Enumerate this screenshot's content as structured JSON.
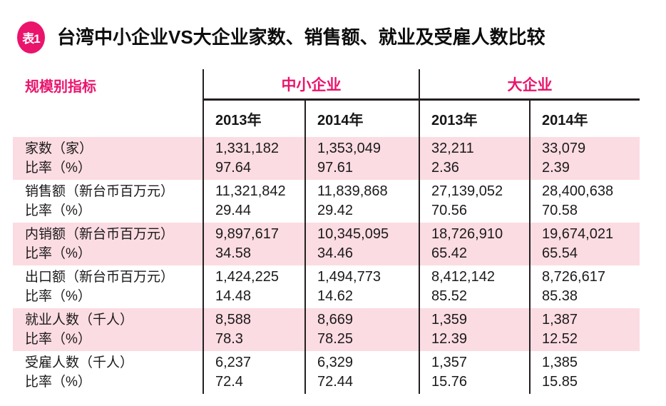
{
  "colors": {
    "accent_magenta": "#EA146C",
    "row_highlight_pink": "#FBDCE2",
    "rule_black": "#231F20",
    "text_black": "#1C1A1B"
  },
  "title": {
    "badge": "表1",
    "text": "台湾中小企业VS大企业家数、销售额、就业及受雇人数比较"
  },
  "table": {
    "corner_label": "规模别指标",
    "groups": [
      {
        "label": "中小企业"
      },
      {
        "label": "大企业"
      }
    ],
    "year_labels": [
      "2013年",
      "2014年",
      "2013年",
      "2014年"
    ],
    "rows": [
      {
        "label": "家数（家）",
        "sublabel": "比率（%）",
        "highlight": true,
        "values": [
          "1,331,182",
          "1,353,049",
          "32,211",
          "33,079"
        ],
        "ratios": [
          "97.64",
          "97.61",
          "2.36",
          "2.39"
        ]
      },
      {
        "label": "销售额（新台币百万元）",
        "sublabel": "比率（%）",
        "highlight": false,
        "values": [
          "11,321,842",
          "11,839,868",
          "27,139,052",
          "28,400,638"
        ],
        "ratios": [
          "29.44",
          "29.42",
          "70.56",
          "70.58"
        ]
      },
      {
        "label": "内销额（新台币百万元）",
        "sublabel": "比率（%）",
        "highlight": true,
        "values": [
          "9,897,617",
          "10,345,095",
          "18,726,910",
          "19,674,021"
        ],
        "ratios": [
          "34.58",
          "34.46",
          "65.42",
          "65.54"
        ]
      },
      {
        "label": "出口额（新台币百万元）",
        "sublabel": "比率（%）",
        "highlight": false,
        "values": [
          "1,424,225",
          "1,494,773",
          "8,412,142",
          "8,726,617"
        ],
        "ratios": [
          "14.48",
          "14.62",
          "85.52",
          "85.38"
        ]
      },
      {
        "label": "就业人数（千人）",
        "sublabel": "比率（%）",
        "highlight": true,
        "values": [
          "8,588",
          "8,669",
          "1,359",
          "1,387"
        ],
        "ratios": [
          "78.3",
          "78.25",
          "12.39",
          "12.52"
        ]
      },
      {
        "label": "受雇人数（千人）",
        "sublabel": "比率（%）",
        "highlight": false,
        "values": [
          "6,237",
          "6,329",
          "1,357",
          "1,385"
        ],
        "ratios": [
          "72.4",
          "72.44",
          "15.76",
          "15.85"
        ]
      }
    ]
  },
  "chart_data": {
    "type": "table",
    "title": "台湾中小企业VS大企业家数、销售额、就业及受雇人数比较",
    "row_header": "规模别指标",
    "column_groups": [
      "中小企业",
      "大企业"
    ],
    "columns": [
      "中小企业 2013年",
      "中小企业 2014年",
      "大企业 2013年",
      "大企业 2014年"
    ],
    "rows": [
      {
        "indicator": "家数（家）",
        "values": [
          1331182,
          1353049,
          32211,
          33079
        ],
        "ratio_percent": [
          97.64,
          97.61,
          2.36,
          2.39
        ]
      },
      {
        "indicator": "销售额（新台币百万元）",
        "values": [
          11321842,
          11839868,
          27139052,
          28400638
        ],
        "ratio_percent": [
          29.44,
          29.42,
          70.56,
          70.58
        ]
      },
      {
        "indicator": "内销额（新台币百万元）",
        "values": [
          9897617,
          10345095,
          18726910,
          19674021
        ],
        "ratio_percent": [
          34.58,
          34.46,
          65.42,
          65.54
        ]
      },
      {
        "indicator": "出口额（新台币百万元）",
        "values": [
          1424225,
          1494773,
          8412142,
          8726617
        ],
        "ratio_percent": [
          14.48,
          14.62,
          85.52,
          85.38
        ]
      },
      {
        "indicator": "就业人数（千人）",
        "values": [
          8588,
          8669,
          1359,
          1387
        ],
        "ratio_percent": [
          78.3,
          78.25,
          12.39,
          12.52
        ]
      },
      {
        "indicator": "受雇人数（千人）",
        "values": [
          6237,
          6329,
          1357,
          1385
        ],
        "ratio_percent": [
          72.4,
          72.44,
          15.76,
          15.85
        ]
      }
    ]
  }
}
